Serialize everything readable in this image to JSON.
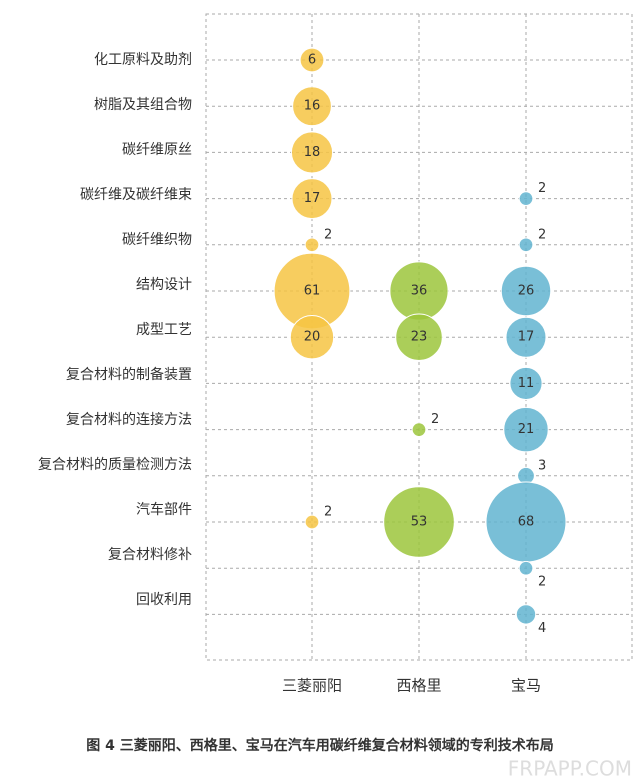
{
  "chart_data": {
    "type": "bubble",
    "title": "图 4 三菱丽阳、西格里、宝马在汽车用碳纤维复合材料领域的专利技术布局",
    "watermark": "FRPAPP.COM",
    "categories": [
      "化工原料及助剂",
      "树脂及其组合物",
      "碳纤维原丝",
      "碳纤维及碳纤维束",
      "碳纤维织物",
      "结构设计",
      "成型工艺",
      "复合材料的制备装置",
      "复合材料的连接方法",
      "复合材料的质量检测方法",
      "汽车部件",
      "复合材料修补",
      "回收利用"
    ],
    "series": [
      {
        "name": "三菱丽阳",
        "color": "#f6c443",
        "values": [
          6,
          16,
          18,
          17,
          2,
          61,
          20,
          null,
          null,
          null,
          2,
          null,
          null
        ]
      },
      {
        "name": "西格里",
        "color": "#9cc53c",
        "values": [
          null,
          null,
          null,
          null,
          null,
          36,
          23,
          null,
          2,
          null,
          53,
          null,
          null
        ]
      },
      {
        "name": "宝马",
        "color": "#62b4d0",
        "values": [
          null,
          null,
          null,
          2,
          2,
          26,
          17,
          11,
          21,
          3,
          68,
          2,
          4
        ]
      }
    ]
  }
}
